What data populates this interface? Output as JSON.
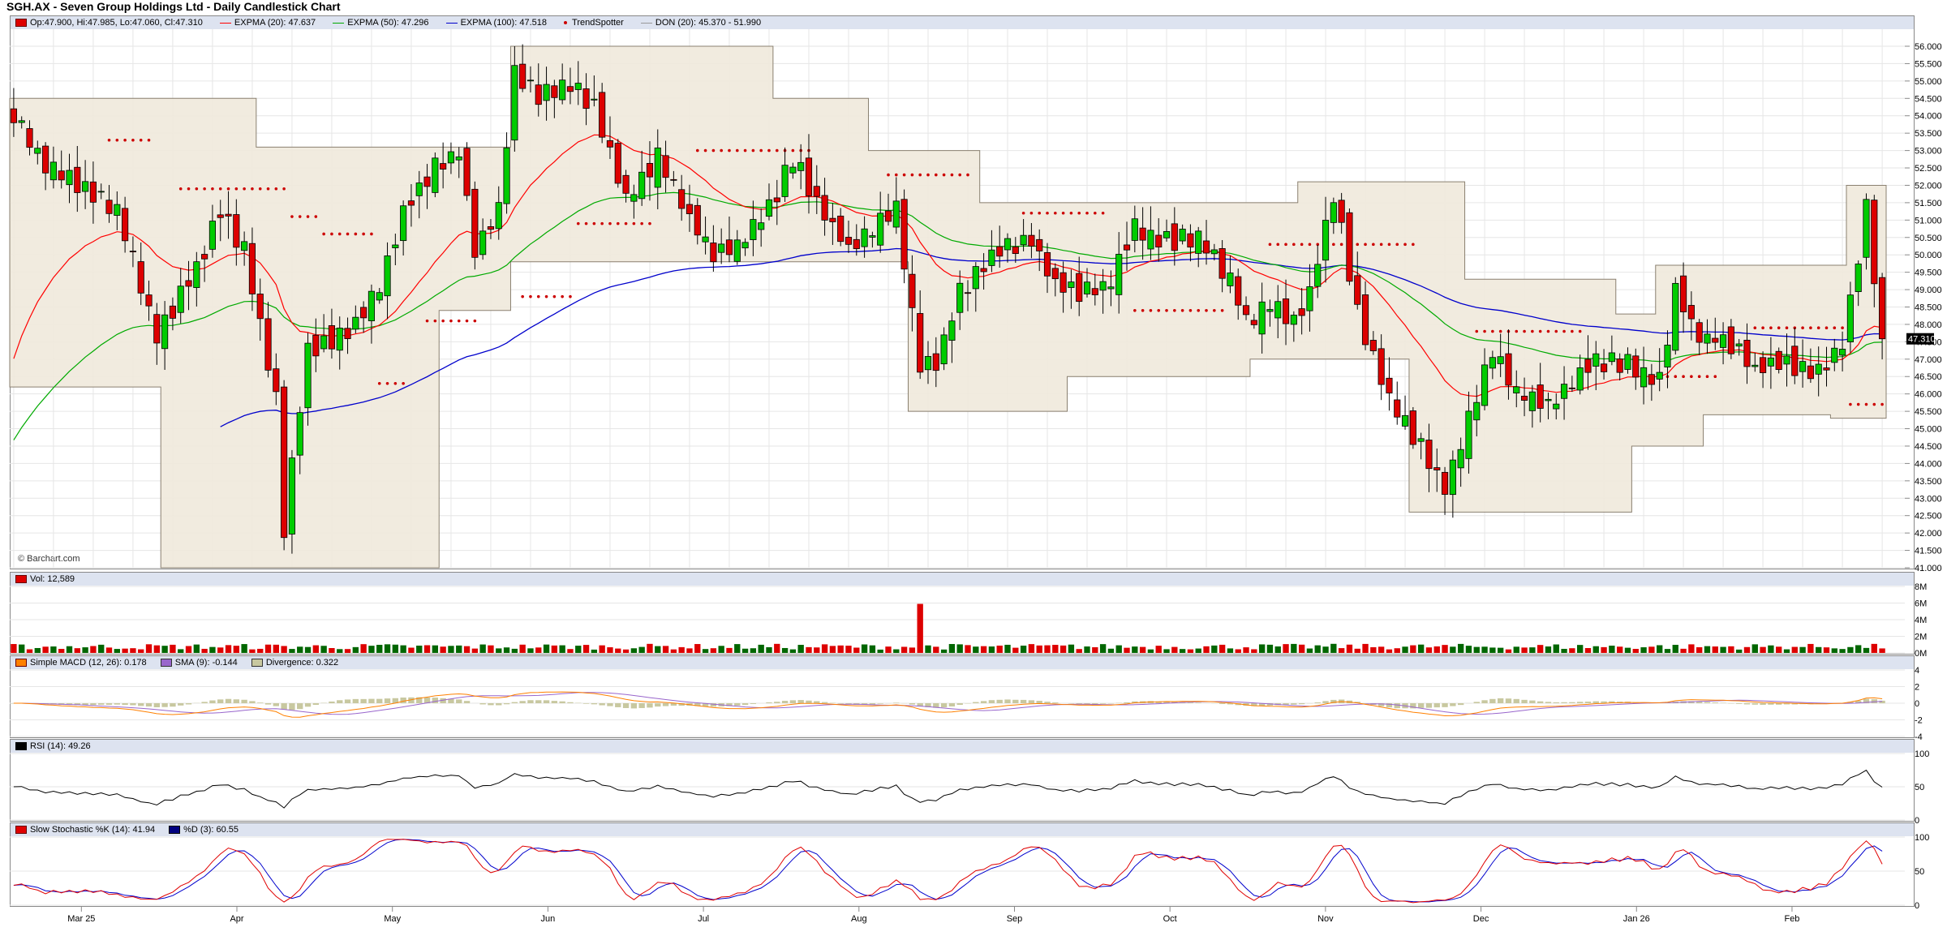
{
  "title": "SGH.AX - Seven Group Holdings Ltd - Daily Candlestick Chart",
  "credit": "© Barchart.com",
  "colors": {
    "up": "#00cc00",
    "down": "#dd0000",
    "ema20": "#ff0000",
    "ema50": "#00aa00",
    "ema100": "#0000cc",
    "donchian": "#f0e9dc",
    "trend": "#cc0000",
    "macd": "#ff8000",
    "macdsig": "#9966cc",
    "diverg": "#c8c8a0",
    "rsi": "#000000",
    "stochK": "#e00000",
    "stochD": "#0000cc",
    "grid": "#e6e6e6"
  },
  "legend": {
    "price": [
      {
        "kind": "box",
        "color": "#dd0000",
        "text": "Op:47.900, Hi:47.985, Lo:47.060, Cl:47.310"
      },
      {
        "kind": "line",
        "color": "#ff0000",
        "text": "EXPMA (20): 47.637"
      },
      {
        "kind": "line",
        "color": "#00aa00",
        "text": "EXPMA (50): 47.296"
      },
      {
        "kind": "line",
        "color": "#0000cc",
        "text": "EXPMA (100): 47.518"
      },
      {
        "kind": "dot",
        "color": "#cc0000",
        "text": "TrendSpotter"
      },
      {
        "kind": "line",
        "color": "#999999",
        "text": "DON (20): 45.370 - 51.990"
      }
    ],
    "volume": [
      {
        "kind": "box",
        "color": "#dd0000",
        "text": "Vol: 12,589"
      }
    ],
    "macd": [
      {
        "kind": "box",
        "color": "#ff8000",
        "text": "Simple MACD (12, 26): 0.178"
      },
      {
        "kind": "box",
        "color": "#9966cc",
        "text": "SMA (9): -0.144"
      },
      {
        "kind": "box",
        "color": "#c8c8a0",
        "text": "Divergence: 0.322"
      }
    ],
    "rsi": [
      {
        "kind": "box",
        "color": "#000000",
        "text": "RSI (14): 49.26"
      }
    ],
    "stoch": [
      {
        "kind": "box",
        "color": "#e00000",
        "text": "Slow Stochastic %K (14): 41.94"
      },
      {
        "kind": "box",
        "color": "#000080",
        "text": "%D (3): 60.55"
      }
    ]
  },
  "last_price_label": "47.310",
  "chart_data": {
    "type": "candlestick",
    "x_months": [
      "Mar 25",
      "Apr",
      "May",
      "Jun",
      "Jul",
      "Aug",
      "Sep",
      "Oct",
      "Nov",
      "Dec",
      "Jan 26",
      "Feb"
    ],
    "price_axis": {
      "ylim": [
        41.0,
        56.0
      ],
      "ticks": [
        "56.000",
        "55.500",
        "55.000",
        "54.500",
        "54.000",
        "53.500",
        "53.000",
        "52.500",
        "52.000",
        "51.500",
        "51.000",
        "50.500",
        "50.000",
        "49.500",
        "49.000",
        "48.500",
        "48.000",
        "47.500",
        "47.000",
        "46.500",
        "46.000",
        "45.500",
        "45.000",
        "44.500",
        "44.000",
        "43.500",
        "43.000",
        "42.500",
        "42.000",
        "41.500",
        "41.000"
      ]
    },
    "volume_axis": {
      "ylim": [
        0,
        8000000
      ],
      "ticks": [
        "8M",
        "6M",
        "4M",
        "2M",
        "0M"
      ]
    },
    "macd_axis": {
      "ylim": [
        -4,
        4
      ],
      "ticks": [
        "4",
        "2",
        "0",
        "-2",
        "-4"
      ]
    },
    "rsi_axis": {
      "ylim": [
        0,
        100
      ],
      "ticks": [
        "100",
        "50",
        "0"
      ]
    },
    "stoch_axis": {
      "ylim": [
        0,
        100
      ],
      "ticks": [
        "100",
        "50",
        "0"
      ]
    },
    "close_anchors": [
      [
        0,
        53.9
      ],
      [
        4,
        52.6
      ],
      [
        9,
        51.9
      ],
      [
        13,
        51.3
      ],
      [
        18,
        47.7
      ],
      [
        23,
        49.6
      ],
      [
        26,
        51.3
      ],
      [
        29,
        50.1
      ],
      [
        33,
        45.9
      ],
      [
        34,
        42.0
      ],
      [
        35,
        44.0
      ],
      [
        37,
        47.3
      ],
      [
        42,
        47.7
      ],
      [
        46,
        49.1
      ],
      [
        49,
        51.3
      ],
      [
        53,
        52.5
      ],
      [
        56,
        53.0
      ],
      [
        58,
        50.1
      ],
      [
        61,
        51.3
      ],
      [
        63,
        55.3
      ],
      [
        66,
        54.6
      ],
      [
        70,
        54.9
      ],
      [
        73,
        54.3
      ],
      [
        77,
        51.6
      ],
      [
        81,
        52.8
      ],
      [
        85,
        51.0
      ],
      [
        88,
        50.1
      ],
      [
        91,
        50.3
      ],
      [
        95,
        51.3
      ],
      [
        98,
        52.8
      ],
      [
        102,
        51.1
      ],
      [
        105,
        50.2
      ],
      [
        108,
        50.8
      ],
      [
        111,
        51.4
      ],
      [
        114,
        46.8
      ],
      [
        116,
        46.8
      ],
      [
        119,
        48.9
      ],
      [
        124,
        50.1
      ],
      [
        128,
        50.4
      ],
      [
        131,
        49.1
      ],
      [
        134,
        48.9
      ],
      [
        138,
        49.2
      ],
      [
        141,
        50.8
      ],
      [
        145,
        50.4
      ],
      [
        149,
        50.5
      ],
      [
        153,
        49.3
      ],
      [
        155,
        48.1
      ],
      [
        158,
        48.6
      ],
      [
        161,
        48.1
      ],
      [
        163,
        48.9
      ],
      [
        166,
        51.8
      ],
      [
        169,
        48.3
      ],
      [
        173,
        45.9
      ],
      [
        176,
        44.8
      ],
      [
        180,
        43.3
      ],
      [
        183,
        45.3
      ],
      [
        186,
        47.3
      ],
      [
        189,
        46.1
      ],
      [
        193,
        45.6
      ],
      [
        196,
        46.4
      ],
      [
        199,
        46.9
      ],
      [
        203,
        46.9
      ],
      [
        207,
        46.4
      ],
      [
        209,
        48.9
      ],
      [
        212,
        47.6
      ],
      [
        215,
        47.6
      ],
      [
        219,
        46.7
      ],
      [
        223,
        46.9
      ],
      [
        227,
        46.6
      ],
      [
        230,
        47.4
      ],
      [
        233,
        51.3
      ],
      [
        235,
        47.3
      ]
    ],
    "don_upper_anchors": [
      [
        0,
        54.5
      ],
      [
        29,
        54.5
      ],
      [
        31,
        53.1
      ],
      [
        63,
        56.0
      ],
      [
        91,
        56.0
      ],
      [
        96,
        54.5
      ],
      [
        108,
        53.0
      ],
      [
        120,
        53.0
      ],
      [
        122,
        51.5
      ],
      [
        161,
        51.5
      ],
      [
        162,
        52.1
      ],
      [
        181,
        52.1
      ],
      [
        183,
        49.3
      ],
      [
        200,
        49.3
      ],
      [
        202,
        48.3
      ],
      [
        206,
        48.3
      ],
      [
        207,
        49.7
      ],
      [
        230,
        49.7
      ],
      [
        231,
        52.0
      ],
      [
        236,
        52.0
      ]
    ],
    "don_lower_anchors": [
      [
        0,
        46.2
      ],
      [
        18,
        46.2
      ],
      [
        19,
        41.0
      ],
      [
        51,
        41.0
      ],
      [
        54,
        48.4
      ],
      [
        63,
        49.8
      ],
      [
        106,
        49.8
      ],
      [
        113,
        45.5
      ],
      [
        130,
        45.5
      ],
      [
        133,
        46.5
      ],
      [
        148,
        46.5
      ],
      [
        156,
        47.0
      ],
      [
        174,
        47.0
      ],
      [
        176,
        42.6
      ],
      [
        202,
        42.6
      ],
      [
        204,
        44.5
      ],
      [
        210,
        44.5
      ],
      [
        213,
        45.4
      ],
      [
        227,
        45.4
      ],
      [
        229,
        45.3
      ],
      [
        236,
        45.3
      ]
    ],
    "ema100_start": 43.5,
    "volume_spike": {
      "index": 114,
      "value": 5900000
    },
    "trend_segments": [
      {
        "from": 12,
        "to": 17,
        "side": "above",
        "level": 53.3
      },
      {
        "from": 21,
        "to": 34,
        "side": "above",
        "level": 51.9
      },
      {
        "from": 35,
        "to": 38,
        "side": "above",
        "level": 51.1
      },
      {
        "from": 39,
        "to": 45,
        "side": "above",
        "level": 50.6
      },
      {
        "from": 46,
        "to": 49,
        "side": "below",
        "level": 46.3
      },
      {
        "from": 52,
        "to": 58,
        "side": "below",
        "level": 48.1
      },
      {
        "from": 64,
        "to": 70,
        "side": "below",
        "level": 48.8
      },
      {
        "from": 71,
        "to": 80,
        "side": "below",
        "level": 50.9
      },
      {
        "from": 86,
        "to": 100,
        "side": "above",
        "level": 53.0
      },
      {
        "from": 110,
        "to": 120,
        "side": "above",
        "level": 52.3
      },
      {
        "from": 127,
        "to": 137,
        "side": "above",
        "level": 51.2
      },
      {
        "from": 141,
        "to": 152,
        "side": "below",
        "level": 48.4
      },
      {
        "from": 158,
        "to": 176,
        "side": "above",
        "level": 50.3
      },
      {
        "from": 184,
        "to": 197,
        "side": "above",
        "level": 47.8
      },
      {
        "from": 208,
        "to": 214,
        "side": "below",
        "level": 46.5
      },
      {
        "from": 219,
        "to": 230,
        "side": "above",
        "level": 47.9
      },
      {
        "from": 231,
        "to": 235,
        "side": "below",
        "level": 45.7
      }
    ]
  }
}
